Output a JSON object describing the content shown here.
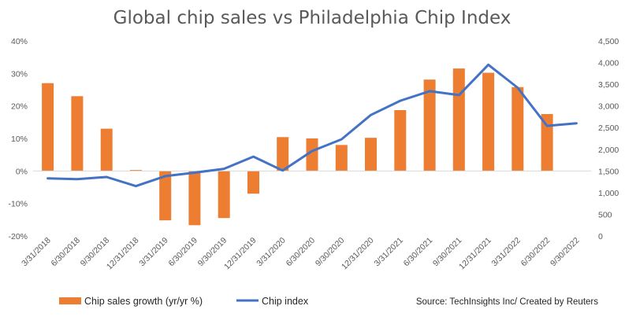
{
  "chart_data": {
    "type": "bar",
    "title": "Global chip sales vs Philadelphia Chip Index",
    "categories": [
      "3/31/2018",
      "6/30/2018",
      "9/30/2018",
      "12/31/2018",
      "3/31/2019",
      "6/30/2019",
      "9/30/2019",
      "12/31/2019",
      "3/31/2020",
      "6/30/2020",
      "9/30/2020",
      "12/31/2020",
      "3/31/2021",
      "6/30/2021",
      "9/30/2021",
      "12/31/2021",
      "3/31/2022",
      "6/30/2022",
      "9/30/2022"
    ],
    "series": [
      {
        "name": "Chip sales growth (yr/yr %)",
        "type": "bar",
        "axis": "left",
        "color": "#ED7D31",
        "values": [
          27,
          23,
          13,
          0.3,
          -15.2,
          -16.7,
          -14.5,
          -7,
          10.4,
          10,
          8,
          10.2,
          18.7,
          28.1,
          31.5,
          30.2,
          25.8,
          17.5,
          null
        ]
      },
      {
        "name": "Chip index",
        "type": "line",
        "axis": "right",
        "color": "#4472C4",
        "values": [
          1330,
          1310,
          1360,
          1150,
          1380,
          1460,
          1550,
          1830,
          1510,
          1960,
          2230,
          2790,
          3120,
          3340,
          3250,
          3950,
          3420,
          2540,
          2600
        ]
      }
    ],
    "y_left": {
      "min": -20,
      "max": 40,
      "step": 10,
      "tick_labels": [
        "-20%",
        "-10%",
        "0%",
        "10%",
        "20%",
        "30%",
        "40%"
      ]
    },
    "y_right": {
      "min": 0,
      "max": 4500,
      "step": 500,
      "tick_labels": [
        "0",
        "500",
        "1,000",
        "1,500",
        "2,000",
        "2,500",
        "3,000",
        "3,500",
        "4,000",
        "4,500"
      ]
    },
    "legend_position": "bottom",
    "grid": false,
    "source": "Source: TechInsights Inc/ Created by Reuters"
  }
}
